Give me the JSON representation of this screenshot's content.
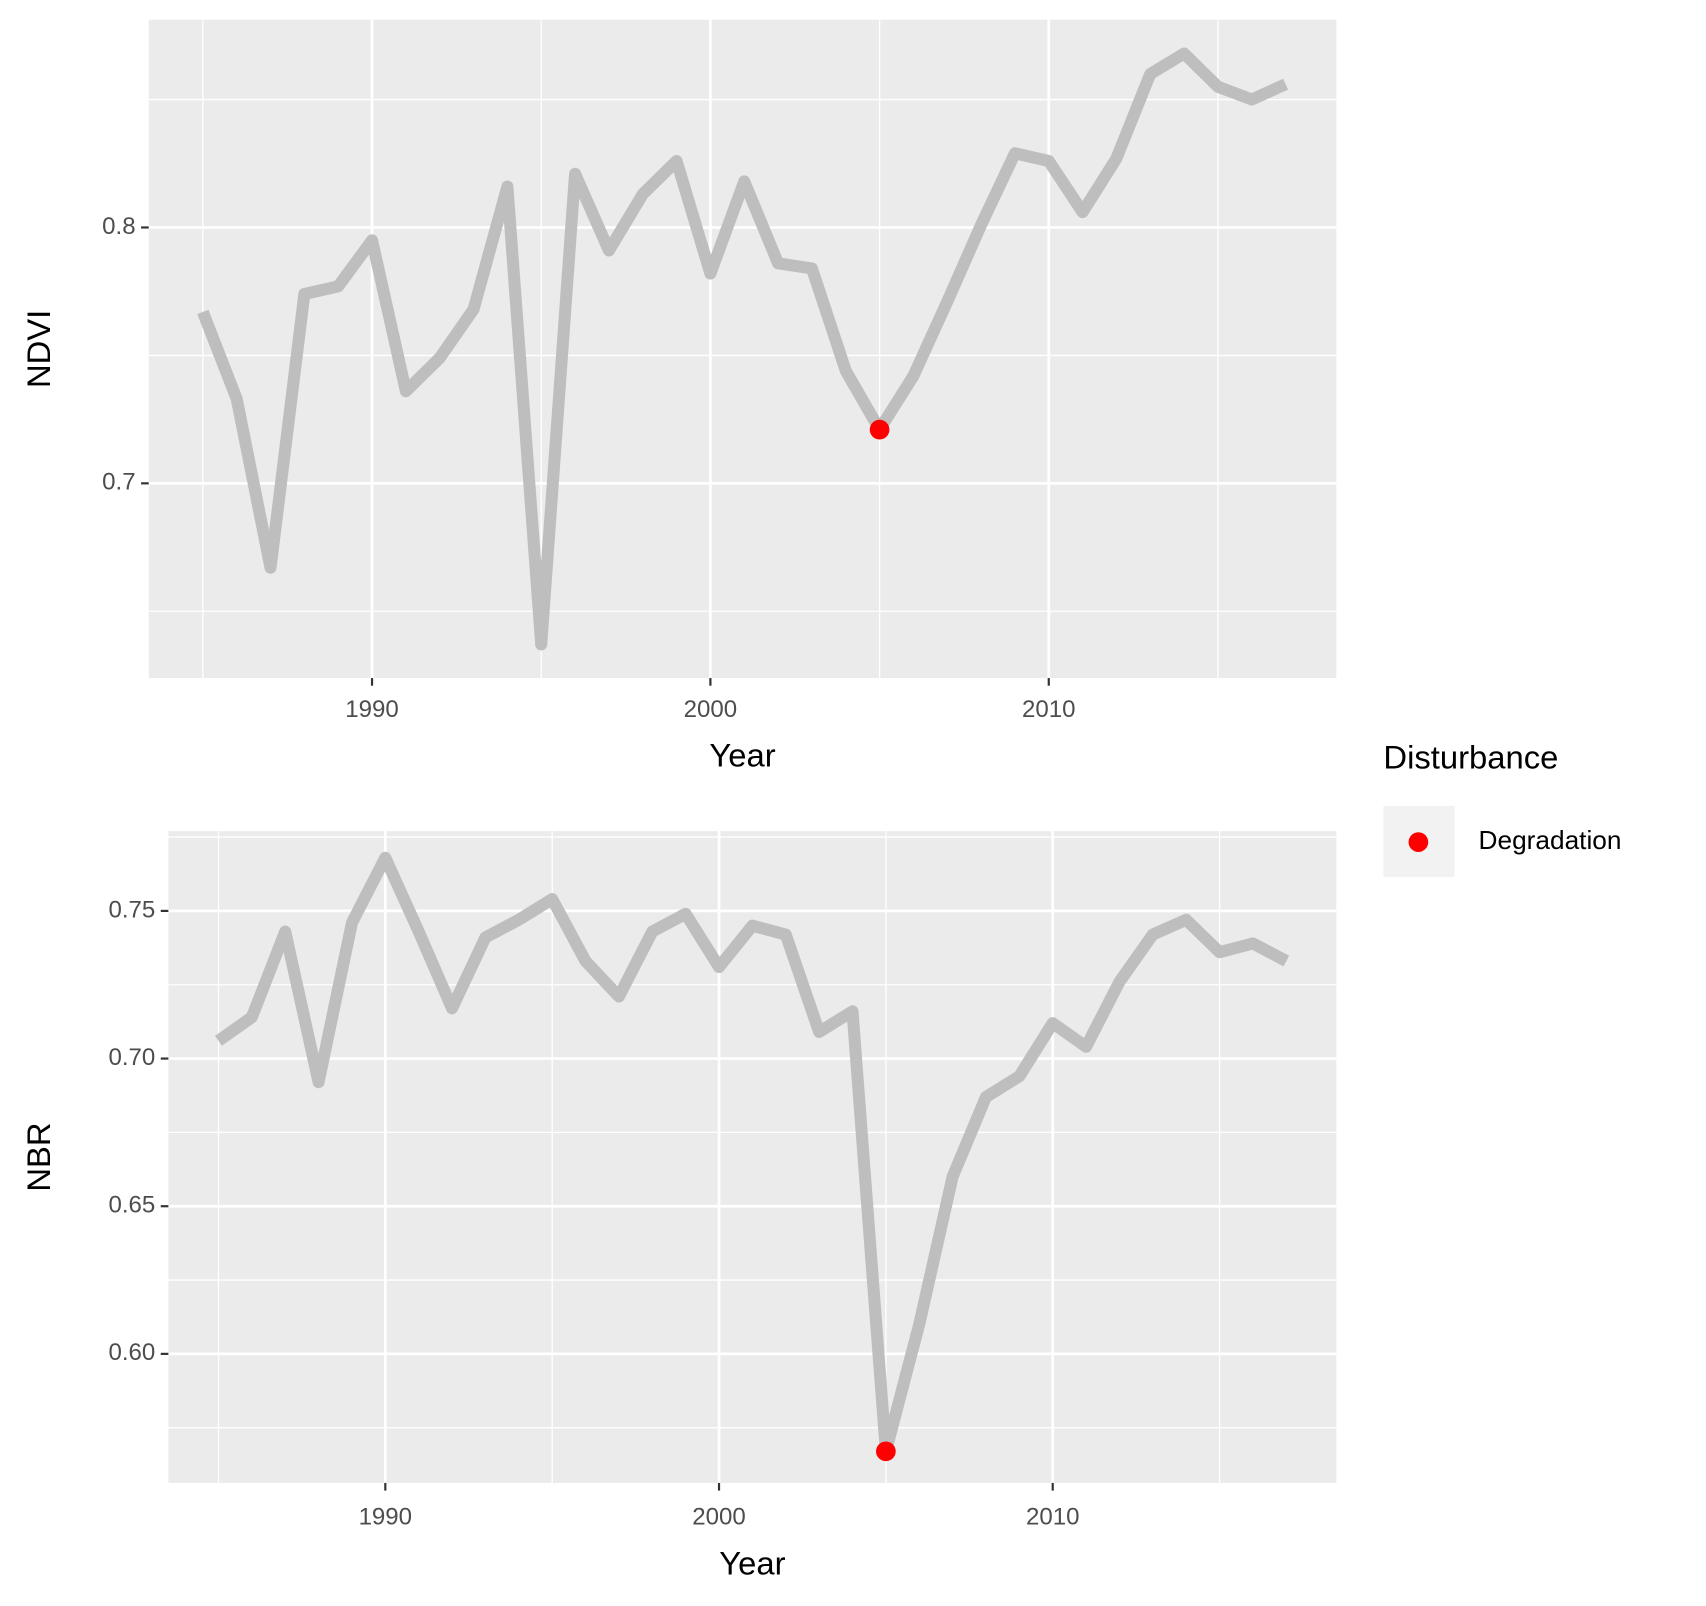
{
  "chart_data": [
    {
      "type": "line",
      "x_label": "Year",
      "y_label": "NDVI",
      "x": [
        1985,
        1986,
        1987,
        1988,
        1989,
        1990,
        1991,
        1992,
        1993,
        1994,
        1995,
        1996,
        1997,
        1998,
        1999,
        2000,
        2001,
        2002,
        2003,
        2004,
        2005,
        2006,
        2007,
        2008,
        2009,
        2010,
        2011,
        2012,
        2013,
        2014,
        2015,
        2016,
        2017
      ],
      "series": [
        {
          "color": "#bebebe",
          "values": [
            0.767,
            0.733,
            0.667,
            0.774,
            0.777,
            0.795,
            0.736,
            0.749,
            0.768,
            0.816,
            0.637,
            0.821,
            0.791,
            0.813,
            0.826,
            0.782,
            0.818,
            0.786,
            0.784,
            0.744,
            0.721,
            0.742,
            0.771,
            0.801,
            0.829,
            0.826,
            0.806,
            0.827,
            0.86,
            0.868,
            0.855,
            0.85,
            0.856
          ]
        }
      ],
      "points": {
        "color": "#ff0000",
        "x": [
          2005
        ],
        "values": [
          0.721
        ]
      },
      "xlim": [
        1983.4,
        2018.5
      ],
      "ylim": [
        0.6239,
        0.8812
      ],
      "xticks": [
        1990,
        2000,
        2010
      ],
      "xminorticks": [
        1985,
        1995,
        2005,
        2015
      ],
      "yticks": [
        0.7,
        0.8
      ],
      "yminorticks": [
        0.65,
        0.75,
        0.85
      ],
      "grid": true
    },
    {
      "type": "line",
      "x_label": "Year",
      "y_label": "NBR",
      "x": [
        1985,
        1986,
        1987,
        1988,
        1989,
        1990,
        1991,
        1992,
        1993,
        1994,
        1995,
        1996,
        1997,
        1998,
        1999,
        2000,
        2001,
        2002,
        2003,
        2004,
        2005,
        2006,
        2007,
        2008,
        2009,
        2010,
        2011,
        2012,
        2013,
        2014,
        2015,
        2016,
        2017
      ],
      "series": [
        {
          "color": "#bebebe",
          "values": [
            0.706,
            0.714,
            0.743,
            0.692,
            0.746,
            0.768,
            0.743,
            0.717,
            0.741,
            0.747,
            0.754,
            0.733,
            0.721,
            0.743,
            0.749,
            0.731,
            0.745,
            0.742,
            0.709,
            0.716,
            0.567,
            0.61,
            0.66,
            0.687,
            0.694,
            0.712,
            0.704,
            0.726,
            0.742,
            0.747,
            0.736,
            0.739,
            0.733
          ]
        }
      ],
      "points": {
        "color": "#ff0000",
        "x": [
          2005
        ],
        "values": [
          0.567
        ]
      },
      "xlim": [
        1983.5,
        2018.5
      ],
      "ylim": [
        0.5563,
        0.777
      ],
      "xticks": [
        1990,
        2000,
        2010
      ],
      "xminorticks": [
        1985,
        1995,
        2005,
        2015
      ],
      "yticks": [
        {
          "value": 0.6,
          "label": "0.60"
        },
        0.65,
        {
          "value": 0.7,
          "label": "0.70"
        },
        0.75
      ],
      "yminorticks": [
        0.575,
        0.625,
        0.675,
        0.725,
        0.775
      ],
      "grid": true
    }
  ],
  "legend": {
    "title": "Disturbance",
    "items": [
      {
        "name": "Degradation",
        "color": "#ff0000"
      }
    ]
  }
}
